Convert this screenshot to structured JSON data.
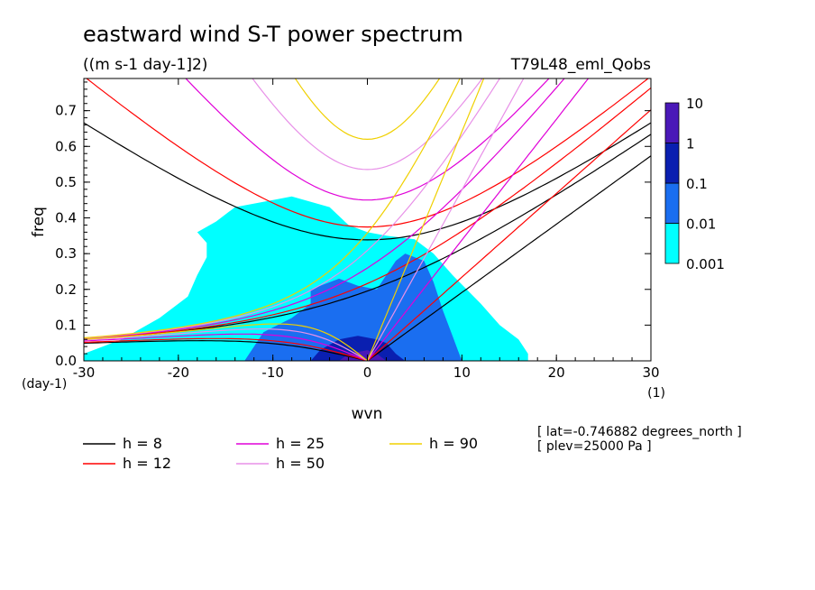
{
  "chart_data": {
    "type": "heatmap",
    "title": "eastward wind S-T power spectrum",
    "units": "((m s-1 day-1]2)",
    "experiment": "T79L48_eml_Qobs",
    "xlabel": "wvn",
    "ylabel": "freq",
    "x_unit_label": "(1)",
    "y_unit_label": "(day-1)",
    "xlim": [
      -30,
      30
    ],
    "ylim": [
      0,
      0.79
    ],
    "x_ticks": [
      -30,
      -20,
      -10,
      0,
      10,
      20,
      30
    ],
    "y_ticks": [
      0.0,
      0.1,
      0.2,
      0.3,
      0.4,
      0.5,
      0.6,
      0.7
    ],
    "x_tick_labels": [
      "-30",
      "-20",
      "-10",
      "0",
      "10",
      "20",
      "30"
    ],
    "y_tick_labels": [
      "0.0",
      "0.1",
      "0.2",
      "0.3",
      "0.4",
      "0.5",
      "0.6",
      "0.7"
    ],
    "colorbar": {
      "levels": [
        "0.001",
        "0.01",
        "0.1",
        "1",
        "10"
      ],
      "colors": [
        "#00ffff",
        "#1a6ef0",
        "#0a1fb0",
        "#4a18b8"
      ]
    },
    "legend": [
      {
        "label": "h =  8",
        "color": "#000000"
      },
      {
        "label": "h = 12",
        "color": "#ff0000"
      },
      {
        "label": "h = 25",
        "color": "#e000d8"
      },
      {
        "label": "h = 50",
        "color": "#e890e8"
      },
      {
        "label": "h = 90",
        "color": "#f0d000"
      }
    ],
    "equivalent_depths": [
      8,
      12,
      25,
      50,
      90
    ],
    "regions": [
      {
        "level": "0.001",
        "shape": [
          [
            -30,
            0.02
          ],
          [
            -26,
            0.06
          ],
          [
            -22,
            0.12
          ],
          [
            -19,
            0.18
          ],
          [
            -18,
            0.24
          ],
          [
            -17,
            0.29
          ],
          [
            -17,
            0.33
          ],
          [
            -18,
            0.36
          ],
          [
            -16,
            0.39
          ],
          [
            -14,
            0.43
          ],
          [
            -10,
            0.45
          ],
          [
            -8,
            0.46
          ],
          [
            -4,
            0.43
          ],
          [
            -2,
            0.38
          ],
          [
            0,
            0.36
          ],
          [
            2,
            0.35
          ],
          [
            5,
            0.34
          ],
          [
            7,
            0.3
          ],
          [
            9,
            0.24
          ],
          [
            12,
            0.16
          ],
          [
            14,
            0.1
          ],
          [
            16,
            0.06
          ],
          [
            17,
            0.02
          ],
          [
            17,
            0.0
          ],
          [
            -30,
            0.0
          ]
        ]
      },
      {
        "level": "0.01",
        "shape": [
          [
            -13,
            0.0
          ],
          [
            -12,
            0.04
          ],
          [
            -11,
            0.08
          ],
          [
            -8,
            0.12
          ],
          [
            -6,
            0.16
          ],
          [
            -6,
            0.2
          ],
          [
            -3,
            0.23
          ],
          [
            -1,
            0.21
          ],
          [
            1,
            0.2
          ],
          [
            2,
            0.24
          ],
          [
            3,
            0.28
          ],
          [
            4,
            0.3
          ],
          [
            6,
            0.28
          ],
          [
            7,
            0.22
          ],
          [
            8,
            0.14
          ],
          [
            9,
            0.07
          ],
          [
            10,
            0.0
          ]
        ]
      },
      {
        "level": "0.1",
        "shape": [
          [
            -6,
            0.0
          ],
          [
            -5,
            0.03
          ],
          [
            -3,
            0.06
          ],
          [
            -1,
            0.07
          ],
          [
            1,
            0.06
          ],
          [
            2,
            0.05
          ],
          [
            3,
            0.02
          ],
          [
            4,
            0.0
          ]
        ]
      },
      {
        "level": "1",
        "shape": [
          [
            -3,
            0.0
          ],
          [
            -2,
            0.02
          ],
          [
            0,
            0.03
          ],
          [
            1,
            0.02
          ],
          [
            2,
            0.0
          ]
        ]
      }
    ],
    "readouts": [
      "[ lat=-0.746882 degrees_north ]",
      "[ plev=25000 Pa ]"
    ]
  }
}
